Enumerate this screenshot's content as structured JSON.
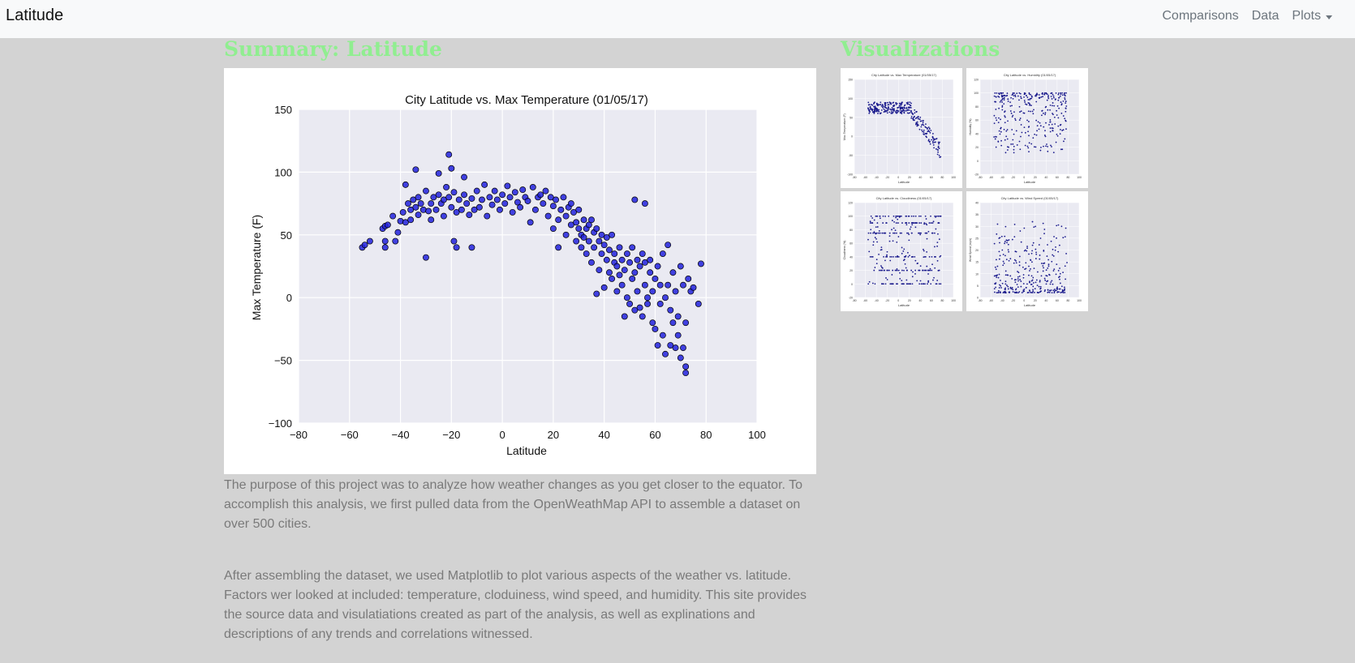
{
  "nav": {
    "brand": "Latitude",
    "links": [
      {
        "label": "Comparisons"
      },
      {
        "label": "Data"
      },
      {
        "label": "Plots"
      }
    ]
  },
  "summary": {
    "title": "Summary: Latitude",
    "paragraphs": [
      "The purpose of this project was to analyze how weather changes as you get closer to the equator. To accomplish this analysis, we first pulled data from the OpenWeathMap API to assemble a dataset on over 500 cities.",
      "After assembling the dataset, we used Matplotlib to plot various aspects of the weather vs. latitude. Factors wer looked at included: temperature, cloduiness, wind speed, and humidity. This site provides the source data and visulatiations created as part of the analysis, as well as explinations and descriptions of any trends and correlations witnessed."
    ]
  },
  "visualizations": {
    "title": "Visualizations",
    "thumbnails": [
      {
        "title": "City Latitude vs. Max Temperature (01/05/17)",
        "ylabel": "Max Temperature (F)",
        "xlabel": "Latitude",
        "yticks": [
          "150",
          "100",
          "50",
          "0",
          "-50",
          "-100"
        ],
        "xticks": [
          "-80",
          "-60",
          "-40",
          "-20",
          "0",
          "20",
          "40",
          "60",
          "80",
          "100"
        ]
      },
      {
        "title": "City Latitude vs. Humidity (01/05/17)",
        "ylabel": "Humidity (%)",
        "xlabel": "Latitude",
        "yticks": [
          "120",
          "100",
          "80",
          "60",
          "40",
          "20",
          "0",
          "-20"
        ],
        "xticks": [
          "-80",
          "-60",
          "-40",
          "-20",
          "0",
          "20",
          "40",
          "60",
          "80",
          "100"
        ]
      },
      {
        "title": "City Latitude vs. Cloudiness (01/05/17)",
        "ylabel": "Cloudiness (%)",
        "xlabel": "Latitude",
        "yticks": [
          "120",
          "100",
          "80",
          "60",
          "40",
          "20",
          "0",
          "-20"
        ],
        "xticks": [
          "-80",
          "-60",
          "-40",
          "-20",
          "0",
          "20",
          "40",
          "60",
          "80",
          "100"
        ]
      },
      {
        "title": "City Latitude vs. Wind Speed (01/05/17)",
        "ylabel": "Wind Speed (mph)",
        "xlabel": "Latitude",
        "yticks": [
          "40",
          "35",
          "30",
          "25",
          "20",
          "15",
          "10",
          "5",
          "0"
        ],
        "xticks": [
          "-80",
          "-60",
          "-40",
          "-20",
          "0",
          "20",
          "40",
          "60",
          "80",
          "100"
        ]
      }
    ]
  },
  "colors": {
    "heading": "#90ee90",
    "background": "#d3d3d3",
    "plot_bg": "#eaeaf2",
    "marker": "#2222dd",
    "marker_edge": "#000000",
    "paragraph": "#7a7a7a"
  },
  "chart_data": {
    "type": "scatter",
    "title": "City Latitude vs. Max Temperature (01/05/17)",
    "xlabel": "Latitude",
    "ylabel": "Max Temperature (F)",
    "xlim": [
      -80,
      100
    ],
    "ylim": [
      -100,
      150
    ],
    "xticks": [
      -80,
      -60,
      -40,
      -20,
      0,
      20,
      40,
      60,
      80,
      100
    ],
    "yticks": [
      -100,
      -50,
      0,
      50,
      100,
      150
    ],
    "grid": true,
    "points": [
      [
        -55,
        40
      ],
      [
        -54,
        42
      ],
      [
        -52,
        45
      ],
      [
        -47,
        55
      ],
      [
        -46,
        57
      ],
      [
        -46,
        45
      ],
      [
        -46,
        40
      ],
      [
        -45,
        58
      ],
      [
        -43,
        65
      ],
      [
        -42,
        45
      ],
      [
        -41,
        52
      ],
      [
        -40,
        61
      ],
      [
        -39,
        68
      ],
      [
        -38,
        60
      ],
      [
        -38,
        90
      ],
      [
        -37,
        75
      ],
      [
        -36,
        62
      ],
      [
        -36,
        70
      ],
      [
        -35,
        78
      ],
      [
        -34,
        102
      ],
      [
        -34,
        72
      ],
      [
        -33,
        66
      ],
      [
        -33,
        80
      ],
      [
        -32,
        75
      ],
      [
        -31,
        70
      ],
      [
        -30,
        32
      ],
      [
        -30,
        85
      ],
      [
        -29,
        69
      ],
      [
        -28,
        75
      ],
      [
        -28,
        62
      ],
      [
        -27,
        80
      ],
      [
        -26,
        70
      ],
      [
        -25,
        82
      ],
      [
        -25,
        99
      ],
      [
        -24,
        75
      ],
      [
        -23,
        65
      ],
      [
        -23,
        78
      ],
      [
        -22,
        88
      ],
      [
        -21,
        114
      ],
      [
        -21,
        80
      ],
      [
        -20,
        103
      ],
      [
        -20,
        72
      ],
      [
        -19,
        45
      ],
      [
        -19,
        84
      ],
      [
        -18,
        40
      ],
      [
        -18,
        68
      ],
      [
        -17,
        78
      ],
      [
        -16,
        70
      ],
      [
        -15,
        96
      ],
      [
        -15,
        82
      ],
      [
        -14,
        75
      ],
      [
        -13,
        66
      ],
      [
        -12,
        40
      ],
      [
        -12,
        79
      ],
      [
        -11,
        70
      ],
      [
        -10,
        85
      ],
      [
        -9,
        72
      ],
      [
        -8,
        78
      ],
      [
        -7,
        90
      ],
      [
        -6,
        65
      ],
      [
        -5,
        80
      ],
      [
        -4,
        74
      ],
      [
        -3,
        85
      ],
      [
        -2,
        78
      ],
      [
        -1,
        70
      ],
      [
        0,
        82
      ],
      [
        1,
        75
      ],
      [
        2,
        89
      ],
      [
        3,
        80
      ],
      [
        4,
        68
      ],
      [
        5,
        84
      ],
      [
        6,
        76
      ],
      [
        7,
        72
      ],
      [
        8,
        86
      ],
      [
        9,
        80
      ],
      [
        10,
        77
      ],
      [
        11,
        60
      ],
      [
        12,
        88
      ],
      [
        13,
        70
      ],
      [
        14,
        80
      ],
      [
        15,
        82
      ],
      [
        16,
        75
      ],
      [
        17,
        85
      ],
      [
        18,
        65
      ],
      [
        19,
        80
      ],
      [
        20,
        55
      ],
      [
        20,
        73
      ],
      [
        21,
        78
      ],
      [
        22,
        62
      ],
      [
        22,
        40
      ],
      [
        23,
        70
      ],
      [
        24,
        80
      ],
      [
        25,
        50
      ],
      [
        25,
        65
      ],
      [
        26,
        72
      ],
      [
        27,
        58
      ],
      [
        27,
        75
      ],
      [
        28,
        68
      ],
      [
        29,
        45
      ],
      [
        29,
        60
      ],
      [
        30,
        55
      ],
      [
        30,
        70
      ],
      [
        31,
        50
      ],
      [
        31,
        40
      ],
      [
        32,
        62
      ],
      [
        32,
        48
      ],
      [
        33,
        55
      ],
      [
        33,
        35
      ],
      [
        34,
        58
      ],
      [
        34,
        45
      ],
      [
        35,
        62
      ],
      [
        35,
        28
      ],
      [
        36,
        52
      ],
      [
        36,
        40
      ],
      [
        37,
        3
      ],
      [
        37,
        55
      ],
      [
        38,
        45
      ],
      [
        38,
        22
      ],
      [
        39,
        50
      ],
      [
        39,
        35
      ],
      [
        40,
        8
      ],
      [
        40,
        42
      ],
      [
        41,
        30
      ],
      [
        41,
        48
      ],
      [
        42,
        20
      ],
      [
        42,
        38
      ],
      [
        43,
        15
      ],
      [
        43,
        50
      ],
      [
        44,
        28
      ],
      [
        44,
        35
      ],
      [
        45,
        5
      ],
      [
        45,
        25
      ],
      [
        46,
        40
      ],
      [
        46,
        18
      ],
      [
        47,
        30
      ],
      [
        47,
        10
      ],
      [
        48,
        22
      ],
      [
        48,
        -15
      ],
      [
        49,
        35
      ],
      [
        49,
        0
      ],
      [
        50,
        28
      ],
      [
        50,
        -5
      ],
      [
        51,
        40
      ],
      [
        51,
        15
      ],
      [
        52,
        20
      ],
      [
        52,
        78
      ],
      [
        52,
        -10
      ],
      [
        53,
        30
      ],
      [
        53,
        5
      ],
      [
        54,
        25
      ],
      [
        54,
        -8
      ],
      [
        55,
        35
      ],
      [
        55,
        -15
      ],
      [
        56,
        10
      ],
      [
        56,
        75
      ],
      [
        56,
        28
      ],
      [
        57,
        0
      ],
      [
        57,
        -5
      ],
      [
        58,
        20
      ],
      [
        58,
        30
      ],
      [
        59,
        -20
      ],
      [
        59,
        5
      ],
      [
        60,
        15
      ],
      [
        60,
        -25
      ],
      [
        61,
        -38
      ],
      [
        61,
        25
      ],
      [
        62,
        10
      ],
      [
        62,
        -5
      ],
      [
        63,
        35
      ],
      [
        63,
        -30
      ],
      [
        64,
        0
      ],
      [
        64,
        -45
      ],
      [
        65,
        42
      ],
      [
        65,
        10
      ],
      [
        66,
        -10
      ],
      [
        66,
        -38
      ],
      [
        67,
        20
      ],
      [
        67,
        -20
      ],
      [
        68,
        5
      ],
      [
        68,
        -40
      ],
      [
        69,
        -15
      ],
      [
        69,
        -30
      ],
      [
        70,
        25
      ],
      [
        70,
        -48
      ],
      [
        71,
        10
      ],
      [
        71,
        -40
      ],
      [
        72,
        -55
      ],
      [
        72,
        -20
      ],
      [
        72,
        -60
      ],
      [
        73,
        15
      ],
      [
        74,
        5
      ],
      [
        75,
        8
      ],
      [
        77,
        -5
      ],
      [
        78,
        27
      ]
    ]
  }
}
